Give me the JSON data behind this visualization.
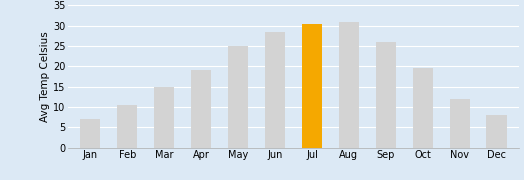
{
  "months": [
    "Jan",
    "Feb",
    "Mar",
    "Apr",
    "May",
    "Jun",
    "Jul",
    "Aug",
    "Sep",
    "Oct",
    "Nov",
    "Dec"
  ],
  "values": [
    7,
    10.5,
    15,
    19,
    25,
    28.5,
    30.3,
    31,
    26,
    19.5,
    12,
    8
  ],
  "bar_colors": [
    "#d3d3d3",
    "#d3d3d3",
    "#d3d3d3",
    "#d3d3d3",
    "#d3d3d3",
    "#d3d3d3",
    "#f5a800",
    "#d3d3d3",
    "#d3d3d3",
    "#d3d3d3",
    "#d3d3d3",
    "#d3d3d3"
  ],
  "ylabel": "Avg Temp Celsius",
  "ylim": [
    0,
    35
  ],
  "yticks": [
    0,
    5,
    10,
    15,
    20,
    25,
    30,
    35
  ],
  "background_color": "#dce9f5",
  "plot_background": "#dce9f5",
  "tick_fontsize": 7,
  "label_fontsize": 7.5,
  "bar_width": 0.55
}
